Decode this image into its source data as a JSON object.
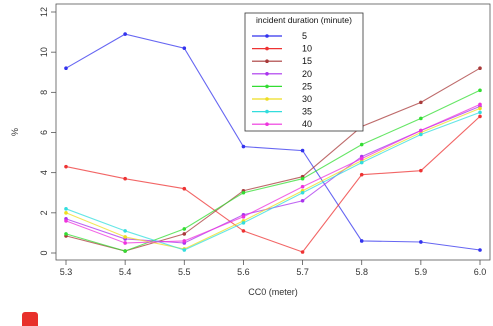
{
  "chart_data": {
    "type": "line",
    "xlabel": "CC0 (meter)",
    "ylabel": "%",
    "x": [
      5.3,
      5.4,
      5.5,
      5.6,
      5.7,
      5.8,
      5.9,
      6.0
    ],
    "x_tick_labels": [
      "5.3",
      "5.4",
      "5.5",
      "5.6",
      "5.7",
      "5.8",
      "5.9",
      "6.0"
    ],
    "xlim": [
      5.3,
      6.0
    ],
    "ylim": [
      0,
      12
    ],
    "y_ticks": [
      0,
      2,
      4,
      6,
      8,
      10,
      12
    ],
    "y_tick_labels": [
      "0",
      "2",
      "4",
      "6",
      "8",
      "10",
      "12"
    ],
    "grid": false,
    "legend": {
      "title": "incident duration (minute)",
      "placement": "top-center"
    },
    "series": [
      {
        "name": "5",
        "color": "#3333ee",
        "values": [
          9.2,
          10.9,
          10.2,
          5.3,
          5.1,
          0.6,
          0.55,
          0.15
        ]
      },
      {
        "name": "10",
        "color": "#ee3333",
        "values": [
          4.3,
          3.7,
          3.2,
          1.1,
          0.05,
          3.9,
          4.1,
          6.8
        ]
      },
      {
        "name": "15",
        "color": "#a83a3a",
        "values": [
          0.85,
          0.1,
          0.95,
          3.1,
          3.8,
          6.3,
          7.5,
          9.2
        ]
      },
      {
        "name": "20",
        "color": "#aa33ee",
        "values": [
          1.7,
          0.7,
          0.5,
          1.9,
          2.6,
          4.8,
          6.1,
          7.3
        ]
      },
      {
        "name": "25",
        "color": "#33dd33",
        "values": [
          0.95,
          0.1,
          1.2,
          3.0,
          3.7,
          5.4,
          6.7,
          8.1
        ]
      },
      {
        "name": "30",
        "color": "#eedd22",
        "values": [
          2.0,
          0.8,
          0.2,
          1.6,
          3.1,
          4.6,
          6.0,
          7.2
        ]
      },
      {
        "name": "35",
        "color": "#33dddd",
        "values": [
          2.2,
          1.1,
          0.15,
          1.5,
          3.0,
          4.5,
          5.9,
          7.0
        ]
      },
      {
        "name": "40",
        "color": "#ee33dd",
        "values": [
          1.6,
          0.5,
          0.6,
          1.8,
          3.3,
          4.7,
          6.1,
          7.4
        ]
      }
    ]
  }
}
